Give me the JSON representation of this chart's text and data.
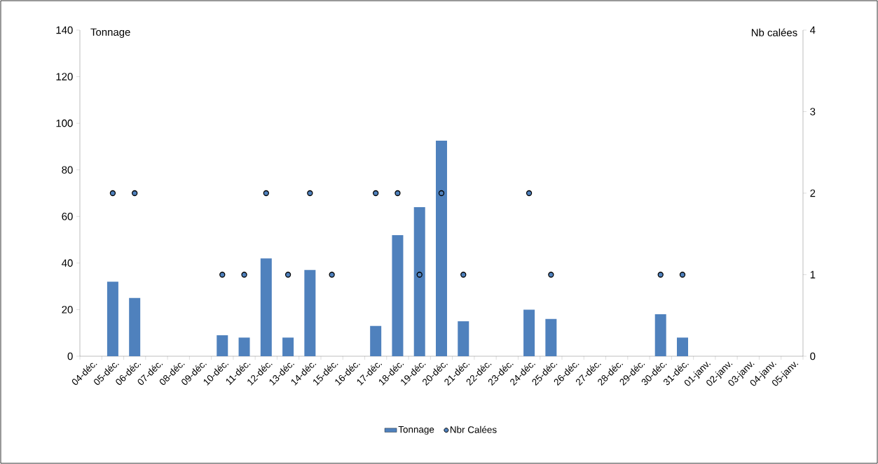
{
  "chart_data": {
    "type": "bar",
    "categories": [
      "04-déc.",
      "05-déc.",
      "06-déc.",
      "07-déc.",
      "08-déc.",
      "09-déc.",
      "10-déc.",
      "11-déc.",
      "12-déc.",
      "13-déc.",
      "14-déc.",
      "15-déc.",
      "16-déc.",
      "17-déc.",
      "18-déc.",
      "19-déc.",
      "20-déc.",
      "21-déc.",
      "22-déc.",
      "23-déc.",
      "24-déc.",
      "25-déc.",
      "26-déc.",
      "27-déc.",
      "28-déc.",
      "29-déc.",
      "30-déc.",
      "31-déc.",
      "01-janv.",
      "02-janv.",
      "03-janv.",
      "04-janv.",
      "05-janv."
    ],
    "series": [
      {
        "name": "Tonnage",
        "color": "#4f81bd",
        "values": [
          null,
          32,
          25,
          null,
          null,
          null,
          9,
          8,
          42,
          8,
          37,
          null,
          null,
          13,
          52,
          64,
          92.5,
          15,
          null,
          null,
          20,
          16,
          null,
          null,
          null,
          null,
          18,
          8,
          null,
          null,
          null,
          null,
          null
        ]
      },
      {
        "name": "Nbr Calées",
        "type": "scatter",
        "axis": "y2",
        "marker": "circle",
        "color": "#4f81bd",
        "values": [
          null,
          2,
          2,
          null,
          null,
          null,
          1,
          1,
          2,
          1,
          2,
          1,
          null,
          2,
          2,
          1,
          2,
          1,
          null,
          null,
          2,
          1,
          null,
          null,
          null,
          null,
          1,
          1,
          null,
          null,
          null,
          null,
          null
        ]
      }
    ],
    "ylabel": "Tonnage",
    "y2label": "Nb calées",
    "ylim": [
      0,
      140
    ],
    "yticks": [
      0,
      20,
      40,
      60,
      80,
      100,
      120,
      140
    ],
    "y2lim": [
      0,
      4
    ],
    "y2ticks": [
      0,
      1,
      2,
      3,
      4
    ],
    "grid": false,
    "legend": "bottom"
  }
}
